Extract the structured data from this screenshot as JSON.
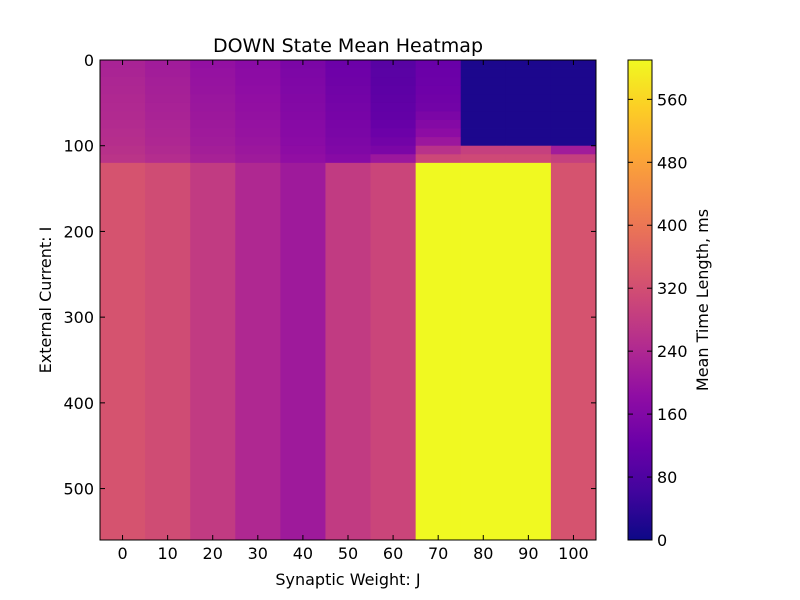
{
  "chart_data": {
    "type": "heatmap",
    "title": "DOWN State Mean Heatmap",
    "xlabel": "Synaptic Weight: J",
    "ylabel": "External Current: I",
    "x_ticks": [
      0,
      10,
      20,
      30,
      40,
      50,
      60,
      70,
      80,
      90,
      100
    ],
    "y_ticks": [
      0,
      100,
      200,
      300,
      400,
      500
    ],
    "xlim": [
      -5,
      105
    ],
    "ylim": [
      0,
      560
    ],
    "y_inverted": true,
    "colormap": "plasma",
    "colorbar": {
      "label": "Mean Time Length, ms",
      "range": [
        0,
        610
      ],
      "ticks": [
        0,
        80,
        160,
        240,
        320,
        400,
        480,
        560
      ]
    },
    "grid": false,
    "x": [
      0,
      10,
      20,
      30,
      40,
      50,
      60,
      70,
      80,
      90,
      100
    ],
    "y_bins": [
      {
        "y0": 0,
        "y1": 10
      },
      {
        "y0": 10,
        "y1": 20
      },
      {
        "y0": 20,
        "y1": 30
      },
      {
        "y0": 30,
        "y1": 40
      },
      {
        "y0": 40,
        "y1": 50
      },
      {
        "y0": 50,
        "y1": 60
      },
      {
        "y0": 60,
        "y1": 70
      },
      {
        "y0": 70,
        "y1": 80
      },
      {
        "y0": 80,
        "y1": 90
      },
      {
        "y0": 90,
        "y1": 100
      },
      {
        "y0": 100,
        "y1": 110
      },
      {
        "y0": 110,
        "y1": 120
      },
      {
        "y0": 120,
        "y1": 560
      }
    ],
    "values": [
      [
        230,
        215,
        190,
        175,
        150,
        125,
        95,
        120,
        18,
        18,
        18
      ],
      [
        232,
        217,
        193,
        178,
        153,
        128,
        98,
        123,
        18,
        18,
        18
      ],
      [
        235,
        220,
        196,
        180,
        156,
        131,
        100,
        126,
        18,
        18,
        18
      ],
      [
        237,
        222,
        198,
        183,
        158,
        134,
        103,
        129,
        18,
        18,
        18
      ],
      [
        240,
        225,
        201,
        186,
        161,
        137,
        106,
        132,
        18,
        18,
        18
      ],
      [
        242,
        227,
        203,
        188,
        163,
        140,
        109,
        135,
        18,
        18,
        18
      ],
      [
        245,
        230,
        206,
        191,
        166,
        143,
        112,
        150,
        18,
        18,
        18
      ],
      [
        247,
        233,
        209,
        193,
        169,
        146,
        118,
        165,
        18,
        18,
        18
      ],
      [
        250,
        235,
        211,
        196,
        171,
        149,
        125,
        180,
        18,
        18,
        18
      ],
      [
        253,
        238,
        214,
        199,
        174,
        153,
        135,
        205,
        18,
        18,
        18
      ],
      [
        258,
        243,
        219,
        204,
        179,
        158,
        150,
        260,
        290,
        290,
        215
      ],
      [
        265,
        250,
        226,
        210,
        186,
        170,
        205,
        305,
        310,
        310,
        290
      ],
      [
        330,
        315,
        280,
        240,
        210,
        280,
        300,
        610,
        610,
        610,
        330
      ]
    ]
  }
}
